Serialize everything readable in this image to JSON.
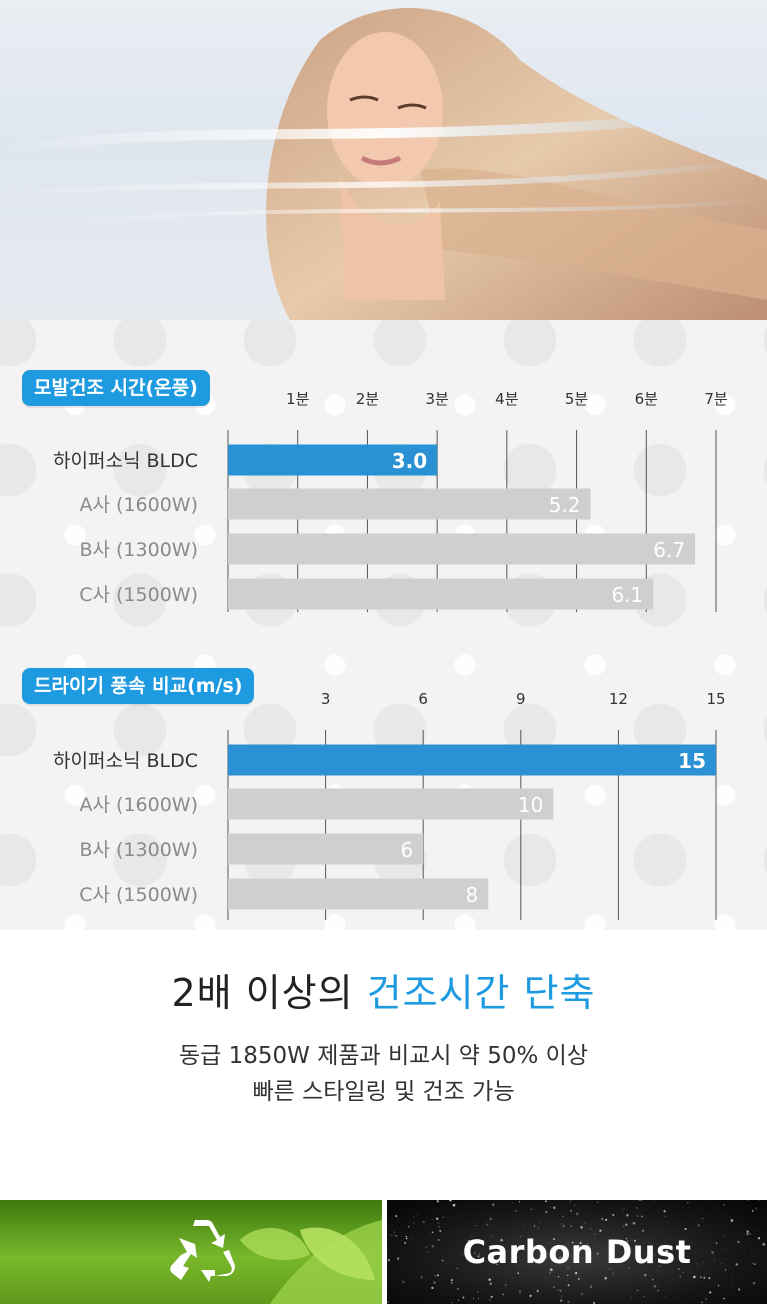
{
  "hero": {
    "icon": "woman-hair-blowing-photo"
  },
  "colors": {
    "accent": "#1e9ae0",
    "bar_highlight": "#2a92d4",
    "bar_other": "#cfcfcf"
  },
  "chart_data": [
    {
      "type": "bar",
      "orientation": "horizontal",
      "title": "모발건조 시간(온풍)",
      "tick_labels": [
        "1분",
        "2분",
        "3분",
        "4분",
        "5분",
        "6분",
        "7분"
      ],
      "xlim": [
        0,
        7
      ],
      "categories": [
        "하이퍼소닉 BLDC",
        "A사 (1600W)",
        "B사 (1300W)",
        "C사 (1500W)"
      ],
      "values": [
        3.0,
        5.2,
        6.7,
        6.1
      ],
      "value_labels": [
        "3.0",
        "5.2",
        "6.7",
        "6.1"
      ],
      "highlight_index": 0,
      "grid": true
    },
    {
      "type": "bar",
      "orientation": "horizontal",
      "title": "드라이기 풍속 비교(m/s)",
      "tick_labels": [
        "3",
        "6",
        "9",
        "12",
        "15"
      ],
      "xlim": [
        0,
        15
      ],
      "categories": [
        "하이퍼소닉 BLDC",
        "A사 (1600W)",
        "B사 (1300W)",
        "C사 (1500W)"
      ],
      "values": [
        15,
        10,
        6,
        8
      ],
      "value_labels": [
        "15",
        "10",
        "6",
        "8"
      ],
      "highlight_index": 0,
      "grid": true
    }
  ],
  "headline": {
    "part1": "2배 이상의 ",
    "accent": "건조시간 단축"
  },
  "subtext": {
    "line1": "동급 1850W 제품과 비교시 약 50% 이상",
    "line2": "빠른 스타일링 및 건조 가능"
  },
  "bottom_panels": {
    "left_icon": "recycle-icon",
    "right_label": "Carbon Dust"
  }
}
